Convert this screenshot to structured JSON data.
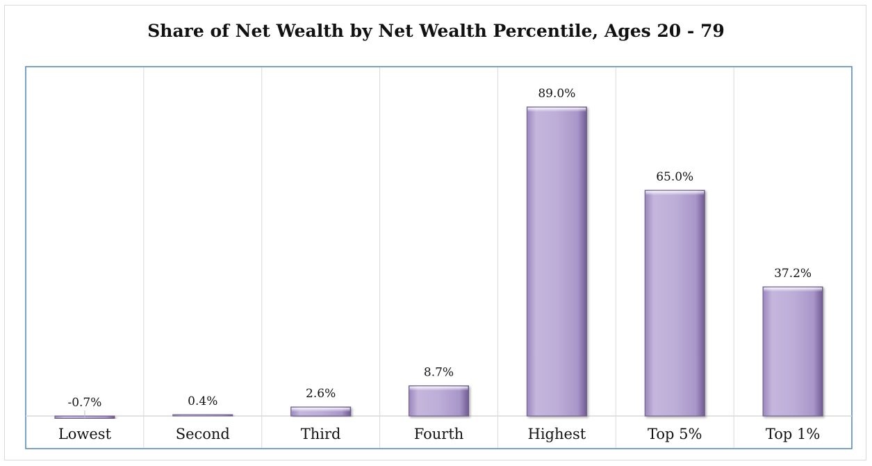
{
  "chart_data": {
    "type": "bar",
    "title": "Share of Net Wealth  by Net Wealth Percentile, Ages 20 - 79",
    "xlabel": "",
    "ylabel": "",
    "categories": [
      "Lowest",
      "Second",
      "Third",
      "Fourth",
      "Highest",
      "Top 5%",
      "Top 1%"
    ],
    "values": [
      -0.7,
      0.4,
      2.6,
      8.7,
      89.0,
      65.0,
      37.2
    ],
    "data_labels": [
      "-0.7%",
      "0.4%",
      "2.6%",
      "8.7%",
      "89.0%",
      "65.0%",
      "37.2%"
    ],
    "ylim": [
      -2,
      100
    ],
    "grid": "vertical",
    "bar_color": "#b9a8d4",
    "frame_color": "#4f81bd"
  }
}
